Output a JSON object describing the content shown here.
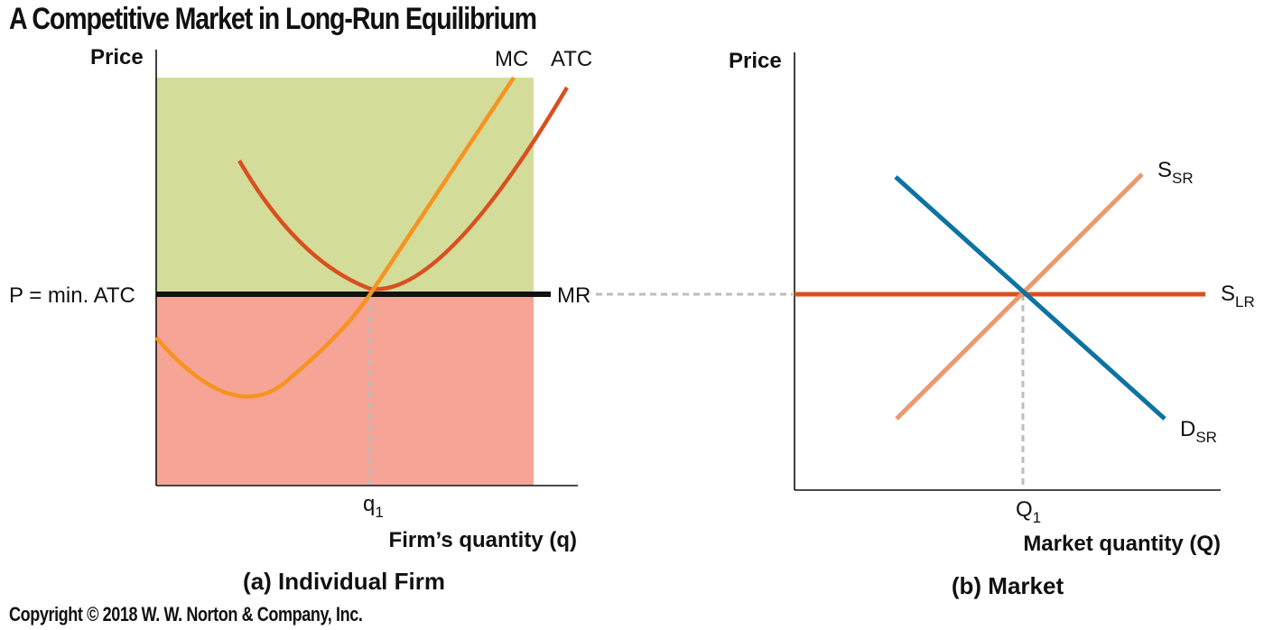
{
  "title": "A Competitive Market in Long-Run Equilibrium",
  "copyright": "Copyright © 2018 W. W. Norton & Company, Inc.",
  "colors": {
    "profit_region": "#d4dc9a",
    "loss_region": "#f5a496",
    "mc": "#f7931e",
    "atc": "#d9501e",
    "mr": "#111111",
    "demand": "#0c73a3",
    "short_run_supply": "#eb9a6e",
    "long_run_supply": "#d9501e",
    "dashed": "#bdbdbd"
  },
  "chart_data": [
    {
      "type": "line",
      "caption": "(a) Individual Firm",
      "ylabel": "Price",
      "xlabel": "Firm’s quantity (q)",
      "price_label": "P = min. ATC",
      "x_tick_label": "q",
      "x_tick_sub": "1",
      "series": [
        {
          "name": "MC",
          "points": [
            [
              0,
              0.38
            ],
            [
              0.2,
              0.22
            ],
            [
              0.3,
              0.35
            ],
            [
              0.5,
              0.78
            ],
            [
              0.85,
              1.65
            ]
          ]
        },
        {
          "name": "ATC",
          "points": [
            [
              0.2,
              1.2
            ],
            [
              0.35,
              0.86
            ],
            [
              0.5,
              0.78
            ],
            [
              0.7,
              0.92
            ],
            [
              0.95,
              1.6
            ]
          ]
        },
        {
          "name": "MR",
          "points": [
            [
              0,
              0.8
            ],
            [
              0.93,
              0.8
            ]
          ]
        }
      ]
    },
    {
      "type": "line",
      "caption": "(b) Market",
      "ylabel": "Price",
      "xlabel": "Market quantity (Q)",
      "x_tick_label": "Q",
      "x_tick_sub": "1",
      "series": [
        {
          "name": "S",
          "sub": "SR",
          "points": [
            [
              0.25,
              0.3
            ],
            [
              0.85,
              1.3
            ]
          ]
        },
        {
          "name": "D",
          "sub": "SR",
          "points": [
            [
              0.25,
              1.3
            ],
            [
              0.9,
              0.3
            ]
          ]
        },
        {
          "name": "S",
          "sub": "LR",
          "points": [
            [
              0,
              0.8
            ],
            [
              1,
              0.8
            ]
          ]
        }
      ]
    }
  ]
}
